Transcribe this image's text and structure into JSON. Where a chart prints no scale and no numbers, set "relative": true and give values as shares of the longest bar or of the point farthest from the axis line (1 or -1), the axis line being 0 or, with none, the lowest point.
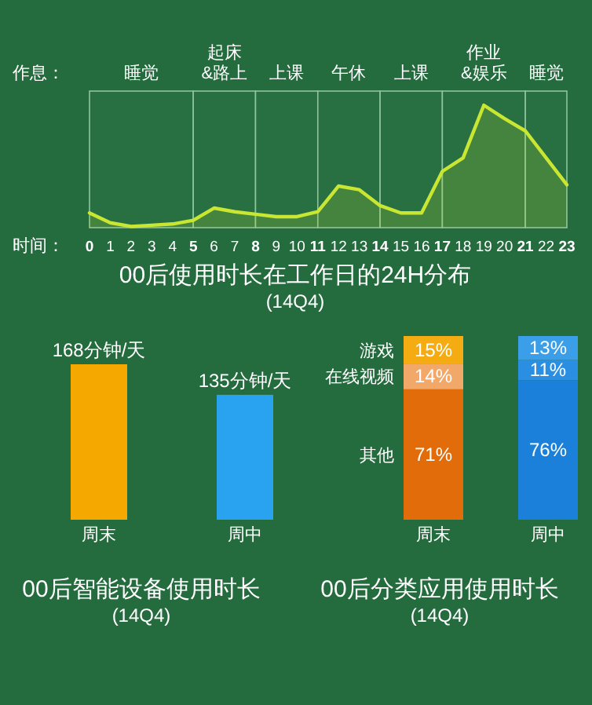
{
  "chart_data": [
    {
      "type": "area",
      "title": "00后使用时长在工作日的24H分布",
      "subtitle": "(14Q4)",
      "xlabel": "时间：",
      "annotations": [
        "作息："
      ],
      "relative": true,
      "x": [
        0,
        1,
        2,
        3,
        4,
        5,
        6,
        7,
        8,
        9,
        10,
        11,
        12,
        13,
        14,
        15,
        16,
        17,
        18,
        19,
        20,
        21,
        22,
        23
      ],
      "xlim": [
        0,
        23
      ],
      "xticks": [
        0,
        1,
        2,
        3,
        4,
        5,
        6,
        7,
        8,
        9,
        10,
        11,
        12,
        13,
        14,
        15,
        16,
        17,
        18,
        19,
        20,
        21,
        22,
        23
      ],
      "series": [
        {
          "color": "#c8e632",
          "values": [
            0.12,
            0.04,
            0.01,
            0.02,
            0.03,
            0.06,
            0.16,
            0.13,
            0.11,
            0.09,
            0.09,
            0.13,
            0.34,
            0.31,
            0.18,
            0.12,
            0.12,
            0.46,
            0.57,
            1,
            0.89,
            0.79,
            0.57,
            0.35
          ]
        }
      ],
      "bands": [
        {
          "axis": "x",
          "from": 0,
          "to": 5,
          "label": "睡觉",
          "color": "#286f42"
        },
        {
          "axis": "x",
          "from": 5,
          "to": 8,
          "label": "起床&路上",
          "color": "#286f42"
        },
        {
          "axis": "x",
          "from": 8,
          "to": 11,
          "label": "上课",
          "color": "#286f42"
        },
        {
          "axis": "x",
          "from": 11,
          "to": 14,
          "label": "午休",
          "color": "#286f42"
        },
        {
          "axis": "x",
          "from": 14,
          "to": 17,
          "label": "上课",
          "color": "#286f42"
        },
        {
          "axis": "x",
          "from": 17,
          "to": 21,
          "label": "作业&娱乐",
          "color": "#286f42"
        },
        {
          "axis": "x",
          "from": 21,
          "to": 23,
          "label": "睡觉",
          "color": "#286f42"
        }
      ]
    },
    {
      "type": "bar",
      "title": "00后智能设备使用时长",
      "subtitle": "(14Q4)",
      "categories": [
        "周末",
        "周中"
      ],
      "values": [
        168,
        135
      ],
      "colors": [
        "#f5a800",
        "#29a3f0"
      ],
      "value_labels": [
        "168分钟/天",
        "135分钟/天"
      ]
    },
    {
      "type": "bar",
      "stacked": true,
      "title": "00后分类应用使用时长",
      "subtitle": "(14Q4)",
      "categories": [
        "周末",
        "周中"
      ],
      "series": [
        {
          "name": "其他",
          "colors": [
            "#e36c0a",
            "#1a80d9"
          ],
          "values": [
            71,
            76
          ],
          "value_labels": [
            "71%",
            "76%"
          ]
        },
        {
          "name": "在线视频",
          "colors": [
            "#f2a868",
            "#2a8fe2"
          ],
          "values": [
            14,
            11
          ],
          "value_labels": [
            "14%",
            "11%"
          ]
        },
        {
          "name": "游戏",
          "colors": [
            "#f5ab12",
            "#3a9fe8"
          ],
          "values": [
            15,
            13
          ],
          "value_labels": [
            "15%",
            "13%"
          ]
        }
      ]
    }
  ]
}
